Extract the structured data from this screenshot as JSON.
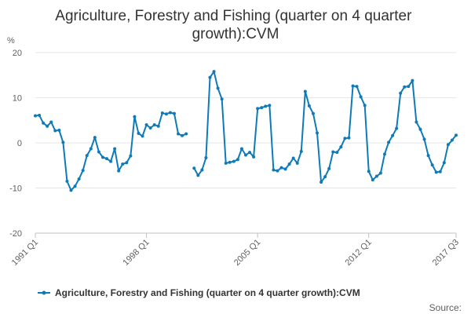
{
  "chart_data": {
    "type": "line",
    "title": "Agriculture, Forestry and Fishing (quarter on 4 quarter growth):CVM",
    "ylabel": "%",
    "ylim": [
      -20,
      20
    ],
    "yticks": [
      -20,
      -10,
      0,
      10,
      20
    ],
    "xlim": [
      "1991 Q1",
      "2017 Q3"
    ],
    "xticks": [
      "1991 Q1",
      "1998 Q1",
      "2005 Q1",
      "2012 Q1",
      "2017 Q3"
    ],
    "grid": true,
    "legend_position": "bottom",
    "color": "#0f7ab8",
    "source_label": "Source:",
    "series": [
      {
        "name": "Agriculture, Forestry and Fishing (quarter on 4 quarter growth):CVM",
        "segments": [
          {
            "start": "1991 Q1",
            "values": [
              6.0,
              6.1,
              4.4,
              3.7,
              4.6,
              2.7,
              2.8,
              0.1,
              -8.5,
              -10.5,
              -9.6,
              -8.0,
              -6.1,
              -2.8,
              -1.3,
              1.2,
              -2.0,
              -3.2,
              -3.5,
              -4.1,
              -1.3,
              -6.2,
              -4.7,
              -4.4,
              -2.9,
              5.8,
              2.1,
              1.5,
              4.0,
              3.3,
              4.0,
              3.7,
              6.6,
              6.4,
              6.7,
              6.5,
              2.0,
              1.6,
              2.0
            ]
          },
          {
            "start": "2001 Q1",
            "values": [
              -5.6,
              -7.2,
              -6.0,
              -3.3,
              14.5,
              15.8,
              12.1,
              9.7,
              -4.5,
              -4.3,
              -4.1,
              -3.7,
              -1.3,
              -2.7,
              -2.1,
              -3.1,
              7.6,
              7.8,
              8.1,
              8.3,
              -6.0,
              -6.2,
              -5.5,
              -5.8,
              -4.7,
              -3.4,
              -4.5,
              -1.9,
              11.4,
              8.2,
              6.5,
              2.2,
              -8.7,
              -7.5,
              -5.7,
              -2.0,
              -2.1,
              -0.9,
              1.0,
              1.1,
              12.6,
              12.5,
              10.2,
              8.3,
              -6.3,
              -8.2,
              -7.4,
              -6.7,
              -2.5,
              0.1,
              1.6,
              3.2,
              11.0,
              12.4,
              12.5,
              13.8,
              4.6,
              3.0,
              0.8,
              -2.8,
              -4.9,
              -6.5,
              -6.4,
              -4.4,
              -0.4,
              0.6,
              1.7
            ]
          }
        ]
      }
    ]
  }
}
